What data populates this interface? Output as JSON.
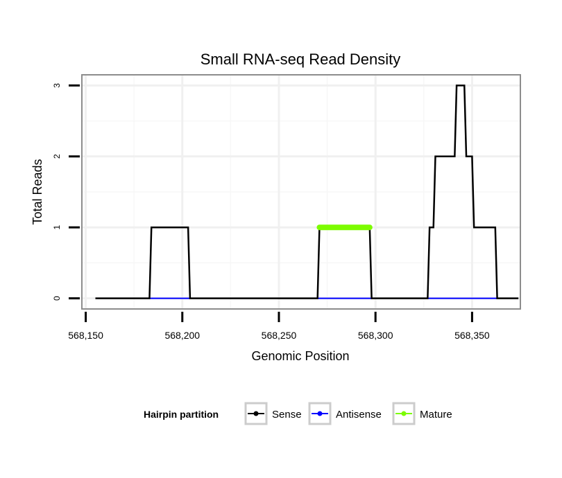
{
  "chart_data": {
    "type": "line",
    "title": "Small RNA-seq Read Density",
    "xlabel": "Genomic Position",
    "ylabel": "Total Reads",
    "xlim": [
      568148,
      568375
    ],
    "ylim": [
      -0.15,
      3.15
    ],
    "x_ticks": [
      568150,
      568200,
      568250,
      568300,
      568350
    ],
    "x_tick_labels": [
      "568,150",
      "568,200",
      "568,250",
      "568,300",
      "568,350"
    ],
    "y_ticks": [
      0,
      1,
      2,
      3
    ],
    "y_tick_labels": [
      "0",
      "1",
      "2",
      "3"
    ],
    "grid": true,
    "legend": {
      "title": "Hairpin partition",
      "position": "bottom",
      "entries": [
        "Sense",
        "Antisense",
        "Mature"
      ]
    },
    "series": [
      {
        "name": "Sense",
        "color": "#000000",
        "x": [
          568155,
          568183,
          568184,
          568203,
          568204,
          568270,
          568271,
          568297,
          568298,
          568327,
          568328,
          568330,
          568331,
          568341,
          568342,
          568346,
          568347,
          568350,
          568351,
          568362,
          568363,
          568374
        ],
        "y": [
          0,
          0,
          1,
          1,
          0,
          0,
          1,
          1,
          0,
          0,
          1,
          1,
          2,
          2,
          3,
          3,
          2,
          2,
          1,
          1,
          0,
          0
        ]
      },
      {
        "name": "Antisense",
        "color": "#0000ff",
        "x": [
          568183,
          568204,
          568270,
          568298,
          568327,
          568363
        ],
        "y": [
          0,
          0,
          0,
          0,
          0,
          0
        ]
      },
      {
        "name": "Mature",
        "color": "#7cfc00",
        "x": [
          568271,
          568297
        ],
        "y": [
          1,
          1
        ]
      }
    ]
  }
}
